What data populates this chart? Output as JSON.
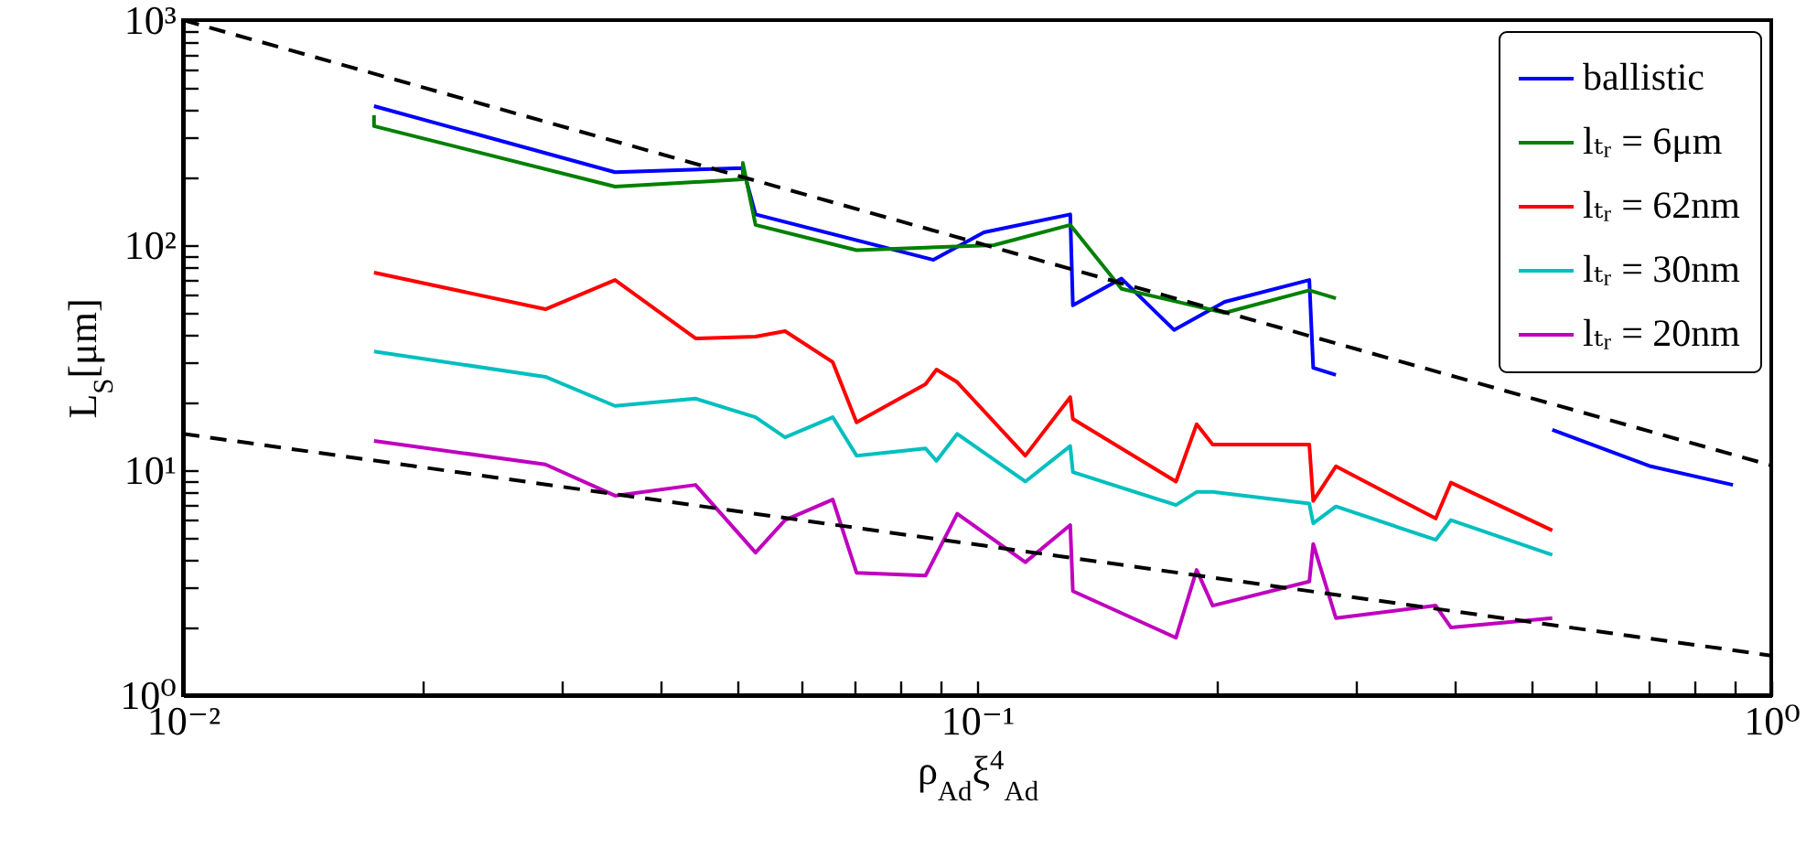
{
  "chart_data": {
    "type": "line",
    "xlabel": "ρ$_{Ad}$ξ$^{4}$$_{Ad}$",
    "ylabel": "L$_{S}$[μm]",
    "log": "xy",
    "grid": false,
    "legend": "top right",
    "xlim": [
      0.01,
      1
    ],
    "ylim": [
      1,
      1000
    ],
    "xticks": [
      {
        "value": 0.01,
        "label": "10⁻²"
      },
      {
        "value": 0.02,
        "label": null
      },
      {
        "value": 0.03,
        "label": null
      },
      {
        "value": 0.04,
        "label": null
      },
      {
        "value": 0.05,
        "label": null
      },
      {
        "value": 0.06,
        "label": null
      },
      {
        "value": 0.07,
        "label": null
      },
      {
        "value": 0.08,
        "label": null
      },
      {
        "value": 0.09,
        "label": null
      },
      {
        "value": 0.1,
        "label": "10⁻¹"
      },
      {
        "value": 0.2,
        "label": null
      },
      {
        "value": 0.3,
        "label": null
      },
      {
        "value": 0.4,
        "label": null
      },
      {
        "value": 0.5,
        "label": null
      },
      {
        "value": 0.6,
        "label": null
      },
      {
        "value": 0.7,
        "label": null
      },
      {
        "value": 0.8,
        "label": null
      },
      {
        "value": 0.9,
        "label": null
      },
      {
        "value": 1,
        "label": "10⁰"
      }
    ],
    "yticks": [
      {
        "value": 1,
        "label": "10⁰"
      },
      {
        "value": 2,
        "label": null
      },
      {
        "value": 3,
        "label": null
      },
      {
        "value": 4,
        "label": null
      },
      {
        "value": 5,
        "label": null
      },
      {
        "value": 6,
        "label": null
      },
      {
        "value": 7,
        "label": null
      },
      {
        "value": 8,
        "label": null
      },
      {
        "value": 9,
        "label": null
      },
      {
        "value": 10,
        "label": "10¹"
      },
      {
        "value": 20,
        "label": null
      },
      {
        "value": 30,
        "label": null
      },
      {
        "value": 40,
        "label": null
      },
      {
        "value": 50,
        "label": null
      },
      {
        "value": 60,
        "label": null
      },
      {
        "value": 70,
        "label": null
      },
      {
        "value": 80,
        "label": null
      },
      {
        "value": 90,
        "label": null
      },
      {
        "value": 100,
        "label": "10²"
      },
      {
        "value": 200,
        "label": null
      },
      {
        "value": 300,
        "label": null
      },
      {
        "value": 400,
        "label": null
      },
      {
        "value": 500,
        "label": null
      },
      {
        "value": 600,
        "label": null
      },
      {
        "value": 700,
        "label": null
      },
      {
        "value": 800,
        "label": null
      },
      {
        "value": 900,
        "label": null
      },
      {
        "value": 1000,
        "label": "10³"
      }
    ],
    "series": [
      {
        "name": "ballistic",
        "color": "#0000ff",
        "x": [
          0.0174,
          0.035,
          0.0507,
          0.0526,
          0.0881,
          0.102,
          0.131,
          0.132,
          0.152,
          0.177,
          0.205,
          0.262,
          0.265,
          0.283,
          0.395,
          0.53,
          0.705,
          0.895
        ],
        "values": [
          415,
          211,
          220,
          137,
          86,
          114,
          137,
          54,
          71,
          42,
          56,
          70,
          28.5,
          26.5,
          null,
          15.1,
          10.4,
          8.6
        ]
      },
      {
        "name": "lₜᵣ = 6μm",
        "color": "#008000",
        "x": [
          0.0174,
          0.0174,
          0.035,
          0.0507,
          0.0507,
          0.0526,
          0.0705,
          0.105,
          0.131,
          0.152,
          0.205,
          0.262,
          0.283
        ],
        "values": [
          378,
          338,
          182,
          196,
          232,
          123,
          95,
          100,
          123,
          64,
          50,
          63,
          58
        ]
      },
      {
        "name": "lₜᵣ = 62nm",
        "color": "#ff0000",
        "x": [
          0.0174,
          0.0286,
          0.035,
          0.0442,
          0.0526,
          0.0573,
          0.0658,
          0.0705,
          0.0861,
          0.0889,
          0.0944,
          0.115,
          0.131,
          0.132,
          0.178,
          0.189,
          0.198,
          0.262,
          0.265,
          0.283,
          0.378,
          0.395,
          0.53
        ],
        "values": [
          75.5,
          51.9,
          70,
          38.5,
          39.2,
          41.5,
          30.2,
          16.3,
          24.1,
          28,
          24.6,
          11.6,
          21.1,
          16.9,
          8.9,
          16,
          13,
          13,
          7.3,
          10.4,
          6.1,
          8.8,
          5.4
        ]
      },
      {
        "name": "lₜᵣ = 30nm",
        "color": "#00bfbf",
        "x": [
          0.0174,
          0.0286,
          0.035,
          0.0442,
          0.0526,
          0.0573,
          0.0658,
          0.0705,
          0.0861,
          0.0889,
          0.0944,
          0.115,
          0.131,
          0.132,
          0.178,
          0.189,
          0.198,
          0.262,
          0.265,
          0.283,
          0.378,
          0.395,
          0.53
        ],
        "values": [
          33.7,
          26,
          19.3,
          20.8,
          17.2,
          14,
          17.2,
          11.6,
          12.5,
          11,
          14.5,
          8.9,
          12.8,
          9.8,
          7,
          8,
          8,
          7.1,
          5.8,
          6.9,
          4.9,
          6,
          4.2
        ]
      },
      {
        "name": "lₜᵣ = 20nm",
        "color": "#bf00bf",
        "x": [
          0.0174,
          0.0286,
          0.035,
          0.0442,
          0.0526,
          0.0573,
          0.0658,
          0.0705,
          0.0861,
          0.0944,
          0.115,
          0.131,
          0.132,
          0.178,
          0.189,
          0.198,
          0.262,
          0.265,
          0.283,
          0.378,
          0.395,
          0.53
        ],
        "values": [
          13.5,
          10.6,
          7.7,
          8.6,
          4.3,
          6,
          7.4,
          3.5,
          3.4,
          6.4,
          3.9,
          5.7,
          2.9,
          1.8,
          3.6,
          2.5,
          3.2,
          4.7,
          2.2,
          2.5,
          2,
          2.2
        ]
      },
      {
        "color": "#000000",
        "line_style": "dashed",
        "x": [
          0.01,
          1
        ],
        "values": [
          1000,
          10.5
        ]
      },
      {
        "color": "#000000",
        "line_style": "dashed",
        "x": [
          0.01,
          1
        ],
        "values": [
          14.5,
          1.5
        ]
      }
    ]
  }
}
